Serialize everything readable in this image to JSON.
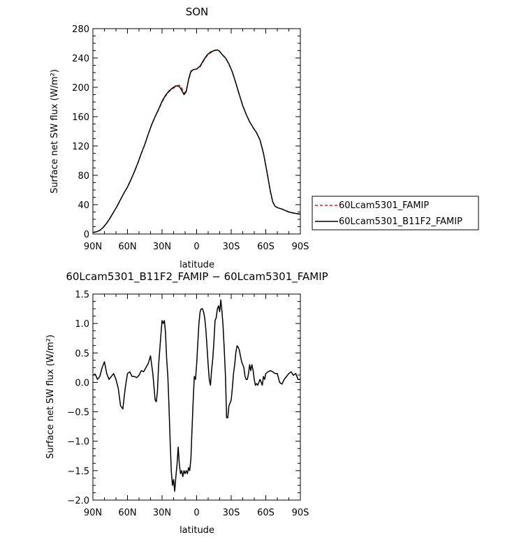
{
  "chart_data": [
    {
      "type": "line",
      "title": "SON",
      "xlabel": "latitude",
      "ylabel": "Surface net SW flux (W/m²)",
      "xlim": [
        -90,
        90
      ],
      "ylim": [
        0,
        280
      ],
      "x_ticks": [
        -90,
        -60,
        -30,
        0,
        30,
        60,
        90
      ],
      "x_tick_labels": [
        "90N",
        "60N",
        "30N",
        "0",
        "30S",
        "60S",
        "90S"
      ],
      "y_ticks": [
        0,
        40,
        80,
        120,
        160,
        200,
        240,
        280
      ],
      "y_tick_labels": [
        "0",
        "40",
        "80",
        "120",
        "160",
        "200",
        "240",
        "280"
      ],
      "legend_position": "right",
      "series": [
        {
          "name": "60Lcam5301_FAMIP",
          "color": "#e41a1c",
          "dash": "dashed",
          "x": [
            -90,
            -87,
            -84,
            -81,
            -78,
            -75,
            -72,
            -69,
            -66,
            -63,
            -60,
            -57,
            -54,
            -51,
            -48,
            -45,
            -42,
            -39,
            -36,
            -33,
            -30,
            -27,
            -24,
            -21,
            -18,
            -15,
            -13,
            -11,
            -9,
            -7,
            -5,
            -3,
            0,
            3,
            6,
            9,
            12,
            15,
            18,
            20,
            22,
            25,
            28,
            31,
            34,
            37,
            40,
            43,
            46,
            49,
            52,
            55,
            58,
            61,
            64,
            66,
            68,
            70,
            72,
            74,
            77,
            80,
            83,
            86,
            90
          ],
          "y": [
            2,
            3,
            5,
            9,
            15,
            22,
            30,
            38,
            47,
            56,
            64,
            74,
            85,
            97,
            110,
            122,
            136,
            149,
            160,
            170,
            180,
            188,
            194,
            198,
            201,
            203,
            199,
            192,
            195,
            210,
            221,
            224,
            225,
            228,
            236,
            243,
            247,
            250,
            251,
            249,
            245,
            240,
            232,
            221,
            206,
            190,
            175,
            163,
            153,
            145,
            138,
            128,
            110,
            85,
            58,
            44,
            38,
            36,
            35,
            34,
            32,
            30,
            29,
            28,
            27
          ]
        },
        {
          "name": "60Lcam5301_B11F2_FAMIP",
          "color": "#000000",
          "dash": "solid",
          "x": [
            -90,
            -87,
            -84,
            -81,
            -78,
            -75,
            -72,
            -69,
            -66,
            -63,
            -60,
            -57,
            -54,
            -51,
            -48,
            -45,
            -42,
            -39,
            -36,
            -33,
            -30,
            -27,
            -24,
            -21,
            -18,
            -15,
            -13,
            -11,
            -9,
            -7,
            -5,
            -3,
            0,
            3,
            6,
            9,
            12,
            15,
            18,
            20,
            22,
            25,
            28,
            31,
            34,
            37,
            40,
            43,
            46,
            49,
            52,
            55,
            58,
            61,
            64,
            66,
            68,
            70,
            72,
            74,
            77,
            80,
            83,
            86,
            90
          ],
          "y": [
            2,
            3,
            5,
            9,
            15,
            22,
            30,
            38,
            47,
            56,
            64,
            74,
            85,
            97,
            110,
            122,
            136,
            149,
            160,
            170,
            181,
            189,
            195,
            199,
            202,
            201,
            196,
            190,
            194,
            211,
            222,
            224,
            225,
            229,
            237,
            244,
            248,
            250,
            251,
            249,
            245,
            240,
            232,
            221,
            206,
            190,
            175,
            163,
            153,
            145,
            138,
            128,
            110,
            85,
            58,
            44,
            38,
            36,
            35,
            34,
            32,
            30,
            29,
            28,
            27
          ]
        }
      ]
    },
    {
      "type": "line",
      "title": "60Lcam5301_B11F2_FAMIP − 60Lcam5301_FAMIP",
      "xlabel": "latitude",
      "ylabel": "Surface net SW flux (W/m²)",
      "xlim": [
        -90,
        90
      ],
      "ylim": [
        -2.0,
        1.5
      ],
      "x_ticks": [
        -90,
        -60,
        -30,
        0,
        30,
        60,
        90
      ],
      "x_tick_labels": [
        "90N",
        "60N",
        "30N",
        "0",
        "30S",
        "60S",
        "90S"
      ],
      "y_ticks": [
        -2.0,
        -1.5,
        -1.0,
        -0.5,
        0.0,
        0.5,
        1.0,
        1.5
      ],
      "y_tick_labels": [
        "−2.0",
        "−1.5",
        "−1.0",
        "−0.5",
        "0.0",
        "0.5",
        "1.0",
        "1.5"
      ],
      "series": [
        {
          "color": "#000000",
          "dash": "solid",
          "x": [
            -90,
            -88,
            -86,
            -84,
            -82,
            -80,
            -78,
            -76,
            -74,
            -72,
            -70,
            -68,
            -66,
            -64,
            -62,
            -60,
            -58,
            -56,
            -54,
            -52,
            -50,
            -48,
            -46,
            -44,
            -42,
            -40,
            -38,
            -36,
            -35,
            -34,
            -33,
            -32,
            -31,
            -30,
            -29,
            -28,
            -27,
            -26,
            -25,
            -24,
            -23,
            -22,
            -21,
            -20,
            -19,
            -18,
            -17,
            -16,
            -15,
            -14,
            -13,
            -12,
            -11,
            -10,
            -9,
            -8,
            -7,
            -6,
            -5,
            -4,
            -3,
            -2,
            -1,
            0,
            1,
            2,
            3,
            4,
            5,
            6,
            7,
            8,
            9,
            10,
            11,
            12,
            13,
            14,
            15,
            16,
            17,
            18,
            19,
            20,
            21,
            22,
            23,
            24,
            25,
            26,
            27,
            28,
            29,
            30,
            31,
            32,
            33,
            34,
            35,
            36,
            37,
            38,
            39,
            40,
            41,
            42,
            43,
            44,
            45,
            46,
            47,
            48,
            49,
            50,
            51,
            52,
            53,
            54,
            55,
            56,
            57,
            58,
            59,
            60,
            62,
            64,
            66,
            68,
            70,
            72,
            74,
            76,
            78,
            80,
            82,
            84,
            86,
            88,
            90
          ],
          "y": [
            0.12,
            0.14,
            0.05,
            0.1,
            0.25,
            0.35,
            0.15,
            0.05,
            0.1,
            0.15,
            0.05,
            -0.1,
            -0.4,
            -0.45,
            -0.1,
            0.15,
            0.18,
            0.1,
            0.1,
            0.08,
            0.12,
            0.2,
            0.18,
            0.25,
            0.32,
            0.45,
            0.15,
            -0.3,
            -0.33,
            -0.15,
            0.3,
            0.55,
            0.8,
            1.05,
            1.0,
            1.05,
            0.85,
            0.4,
            0.1,
            -0.4,
            -1.0,
            -1.5,
            -1.75,
            -1.65,
            -1.85,
            -1.6,
            -1.4,
            -1.1,
            -1.4,
            -1.55,
            -1.5,
            -1.6,
            -1.5,
            -1.55,
            -1.5,
            -1.55,
            -1.45,
            -1.5,
            -1.3,
            -0.8,
            -0.3,
            0.1,
            0.05,
            0.3,
            0.65,
            1.0,
            1.2,
            1.25,
            1.25,
            1.2,
            1.1,
            0.9,
            0.6,
            0.3,
            0.05,
            -0.05,
            0.2,
            0.4,
            0.7,
            1.05,
            1.1,
            1.25,
            1.3,
            1.2,
            1.4,
            1.2,
            0.95,
            0.55,
            0.1,
            -0.6,
            -0.6,
            -0.4,
            -0.35,
            -0.3,
            -0.1,
            0.15,
            0.3,
            0.5,
            0.62,
            0.6,
            0.55,
            0.45,
            0.35,
            0.3,
            0.25,
            0.1,
            0.05,
            0.05,
            0.15,
            0.3,
            0.2,
            0.3,
            0.2,
            0.05,
            -0.05,
            -0.02,
            -0.05,
            0.0,
            0.05,
            0.0,
            -0.05,
            0.1,
            0.05,
            0.15,
            0.18,
            0.2,
            0.18,
            0.15,
            0.15,
            0.0,
            -0.03,
            0.05,
            0.1,
            0.15,
            0.18,
            0.12,
            0.15,
            0.05,
            0.05
          ]
        }
      ]
    }
  ]
}
